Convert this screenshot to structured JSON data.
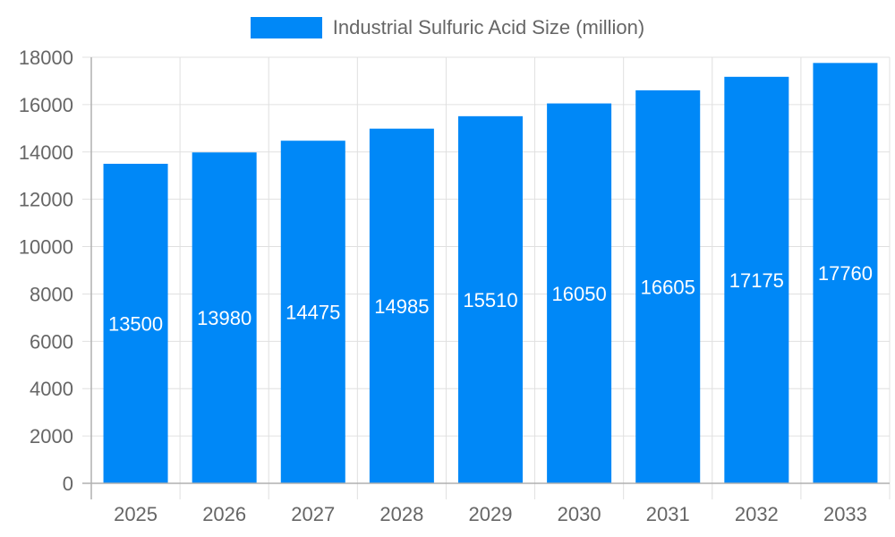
{
  "chart_data": {
    "type": "bar",
    "categories": [
      "2025",
      "2026",
      "2027",
      "2028",
      "2029",
      "2030",
      "2031",
      "2032",
      "2033"
    ],
    "series": [
      {
        "name": "Industrial Sulfuric Acid Size (million)",
        "values": [
          13500,
          13980,
          14475,
          14985,
          15510,
          16050,
          16605,
          17175,
          17760
        ]
      }
    ],
    "ylim": [
      0,
      18000
    ],
    "yticks": [
      "0",
      "2000",
      "4000",
      "6000",
      "8000",
      "10000",
      "12000",
      "14000",
      "16000",
      "18000"
    ],
    "grid": true,
    "legend_position": "top-center",
    "data_labels": true
  },
  "colors": {
    "bar": "#0088f7",
    "grid": "#e0e0e0",
    "axis": "#b0b0b0",
    "text": "#666666",
    "label": "#ffffff"
  }
}
